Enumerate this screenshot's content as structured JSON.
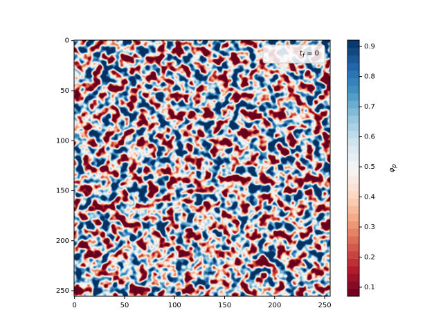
{
  "chart_data": {
    "type": "heatmap",
    "colormap": "RdBu",
    "xlim": [
      -0.5,
      255.5
    ],
    "ylim": [
      255.5,
      -0.5
    ],
    "xticks": [
      0,
      50,
      100,
      150,
      200,
      250
    ],
    "yticks": [
      0,
      50,
      100,
      150,
      200,
      250
    ],
    "legend_label": "t_f = 0",
    "legend_position": "upper right",
    "colorbar": {
      "label": "φ_p",
      "lim": [
        0.07,
        0.921
      ],
      "ticks": [
        0.1,
        0.2,
        0.3,
        0.4,
        0.5,
        0.6,
        0.7,
        0.8,
        0.9
      ]
    }
  }
}
